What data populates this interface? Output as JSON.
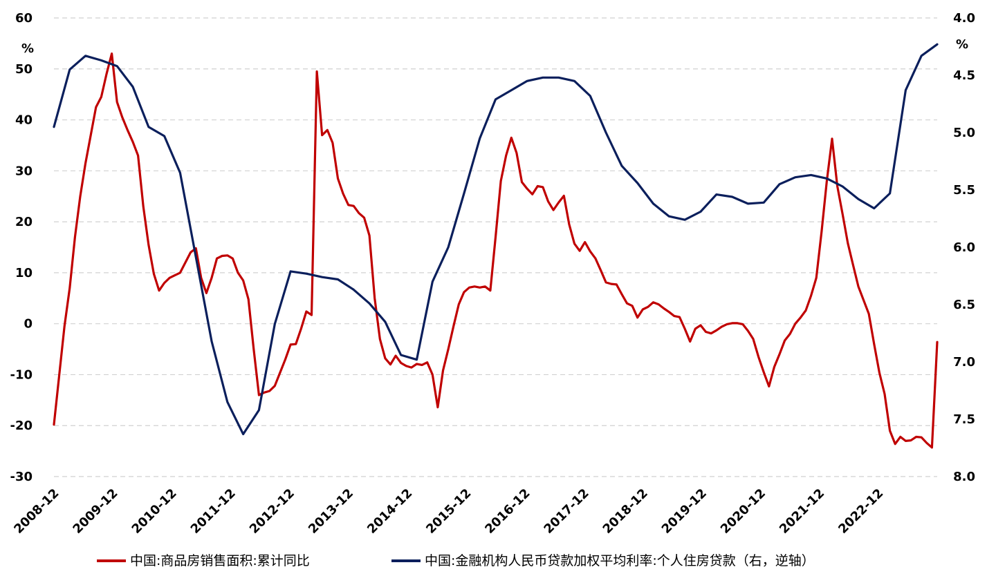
{
  "chart_data": {
    "type": "line",
    "categories": [
      "2008-12",
      "2009-12",
      "2010-12",
      "2011-12",
      "2012-12",
      "2013-12",
      "2014-12",
      "2015-12",
      "2016-12",
      "2017-12",
      "2018-12",
      "2019-12",
      "2020-12",
      "2021-12",
      "2022-12"
    ],
    "y_left": {
      "unit": "%",
      "ylim": [
        -30,
        60
      ],
      "ticks": [
        60,
        50,
        40,
        30,
        20,
        10,
        0,
        -10,
        -20,
        -30
      ]
    },
    "y_right": {
      "unit": "%",
      "ylim": [
        4.0,
        8.0
      ],
      "inverted": true,
      "ticks": [
        "4.0",
        "4.5",
        "5.0",
        "5.5",
        "6.0",
        "6.5",
        "7.0",
        "7.5",
        "8.0"
      ]
    },
    "grid": "horizontal dashed",
    "legend_position": "bottom",
    "series": [
      {
        "name": "中国:商品房销售面积:累计同比",
        "color": "#c00000",
        "axis": "left",
        "points": [
          [
            0,
            -19.8
          ],
          [
            2,
            -0.5
          ],
          [
            3,
            7
          ],
          [
            4,
            17
          ],
          [
            5,
            25
          ],
          [
            6,
            31.5
          ],
          [
            7,
            37
          ],
          [
            8,
            42.5
          ],
          [
            9,
            44.5
          ],
          [
            10,
            49
          ],
          [
            11,
            53
          ],
          [
            12,
            43.5
          ],
          [
            13,
            40.5
          ],
          [
            14,
            38
          ],
          [
            15,
            35.7
          ],
          [
            16,
            33
          ],
          [
            17,
            23
          ],
          [
            18,
            15.5
          ],
          [
            19,
            9.8
          ],
          [
            20,
            6.5
          ],
          [
            21,
            8
          ],
          [
            22,
            9
          ],
          [
            23,
            9.5
          ],
          [
            24,
            10
          ],
          [
            25,
            12
          ],
          [
            26,
            14
          ],
          [
            27,
            14.8
          ],
          [
            28,
            9
          ],
          [
            29,
            6
          ],
          [
            30,
            9
          ],
          [
            31,
            12.8
          ],
          [
            32,
            13.3
          ],
          [
            33,
            13.4
          ],
          [
            34,
            12.8
          ],
          [
            35,
            10
          ],
          [
            36,
            8.5
          ],
          [
            37,
            4.8
          ],
          [
            38,
            -5
          ],
          [
            39,
            -14
          ],
          [
            40,
            -13.5
          ],
          [
            41,
            -13.2
          ],
          [
            42,
            -12.2
          ],
          [
            43,
            -9.6
          ],
          [
            44,
            -7
          ],
          [
            45,
            -4.1
          ],
          [
            46,
            -4
          ],
          [
            47,
            -1
          ],
          [
            48,
            2.4
          ],
          [
            49,
            1.7
          ],
          [
            50,
            49.5
          ],
          [
            51,
            37
          ],
          [
            52,
            38
          ],
          [
            53,
            35.5
          ],
          [
            54,
            28.5
          ],
          [
            55,
            25.5
          ],
          [
            56,
            23.3
          ],
          [
            57,
            23.1
          ],
          [
            58,
            21.7
          ],
          [
            59,
            20.8
          ],
          [
            60,
            17.3
          ],
          [
            61,
            5
          ],
          [
            62,
            -3
          ],
          [
            63,
            -6.8
          ],
          [
            64,
            -8
          ],
          [
            65,
            -6.3
          ],
          [
            66,
            -7.7
          ],
          [
            67,
            -8.3
          ],
          [
            68,
            -8.6
          ],
          [
            69,
            -7.9
          ],
          [
            70,
            -8.1
          ],
          [
            71,
            -7.6
          ],
          [
            72,
            -10
          ],
          [
            73,
            -16.4
          ],
          [
            74,
            -9.2
          ],
          [
            75,
            -5
          ],
          [
            76,
            -0.5
          ],
          [
            77,
            3.8
          ],
          [
            78,
            6.2
          ],
          [
            79,
            7.1
          ],
          [
            80,
            7.3
          ],
          [
            81,
            7.1
          ],
          [
            82,
            7.3
          ],
          [
            83,
            6.5
          ],
          [
            84,
            17
          ],
          [
            85,
            28
          ],
          [
            86,
            33
          ],
          [
            87,
            36.5
          ],
          [
            88,
            33.5
          ],
          [
            89,
            27.8
          ],
          [
            90,
            26.5
          ],
          [
            91,
            25.4
          ],
          [
            92,
            27
          ],
          [
            93,
            26.8
          ],
          [
            94,
            24
          ],
          [
            95,
            22.3
          ],
          [
            96,
            23.8
          ],
          [
            97,
            25.1
          ],
          [
            98,
            19.5
          ],
          [
            99,
            15.7
          ],
          [
            100,
            14.3
          ],
          [
            101,
            16
          ],
          [
            102,
            14.2
          ],
          [
            103,
            12.8
          ],
          [
            104,
            10.5
          ],
          [
            105,
            8.1
          ],
          [
            106,
            7.8
          ],
          [
            107,
            7.7
          ],
          [
            108,
            5.8
          ],
          [
            109,
            4
          ],
          [
            110,
            3.5
          ],
          [
            111,
            1.2
          ],
          [
            112,
            2.8
          ],
          [
            113,
            3.3
          ],
          [
            114,
            4.2
          ],
          [
            115,
            3.8
          ],
          [
            116,
            3
          ],
          [
            117,
            2.3
          ],
          [
            118,
            1.5
          ],
          [
            119,
            1.3
          ],
          [
            120,
            -1
          ],
          [
            121,
            -3.5
          ],
          [
            122,
            -1
          ],
          [
            123,
            -0.3
          ],
          [
            124,
            -1.6
          ],
          [
            125,
            -1.9
          ],
          [
            126,
            -1.3
          ],
          [
            127,
            -0.6
          ],
          [
            128,
            -0.1
          ],
          [
            129,
            0.1
          ],
          [
            130,
            0.1
          ],
          [
            131,
            -0.1
          ],
          [
            132,
            -1.4
          ],
          [
            133,
            -3
          ],
          [
            134,
            -6.5
          ],
          [
            135,
            -9.5
          ],
          [
            136,
            -12.3
          ],
          [
            137,
            -8.5
          ],
          [
            138,
            -6
          ],
          [
            139,
            -3.3
          ],
          [
            140,
            -2
          ],
          [
            141,
            0
          ],
          [
            142,
            1.2
          ],
          [
            143,
            2.6
          ],
          [
            144,
            5.5
          ],
          [
            145,
            9
          ],
          [
            146,
            18
          ],
          [
            147,
            28
          ],
          [
            148,
            36.3
          ],
          [
            149,
            27
          ],
          [
            150,
            21.5
          ],
          [
            151,
            15.8
          ],
          [
            152,
            11.5
          ],
          [
            153,
            7.3
          ],
          [
            154,
            4.6
          ],
          [
            155,
            1.9
          ],
          [
            156,
            -4
          ],
          [
            157,
            -9.6
          ],
          [
            158,
            -13.8
          ],
          [
            159,
            -21
          ],
          [
            160,
            -23.6
          ],
          [
            161,
            -22.2
          ],
          [
            162,
            -23
          ],
          [
            163,
            -22.9
          ],
          [
            164,
            -22.2
          ],
          [
            165,
            -22.3
          ],
          [
            166,
            -23.4
          ],
          [
            167,
            -24.3
          ],
          [
            168,
            -3.6
          ]
        ]
      },
      {
        "name": "中国:金融机构人民币贷款加权平均利率:个人住房贷款（右，逆轴）",
        "color": "#0b1f5c",
        "axis": "right",
        "points": [
          [
            0,
            4.95
          ],
          [
            3,
            4.45
          ],
          [
            6,
            4.33
          ],
          [
            9,
            4.37
          ],
          [
            12,
            4.42
          ],
          [
            15,
            4.6
          ],
          [
            18,
            4.95
          ],
          [
            21,
            5.03
          ],
          [
            24,
            5.35
          ],
          [
            30,
            6.82
          ],
          [
            33,
            7.35
          ],
          [
            36,
            7.63
          ],
          [
            39,
            7.42
          ],
          [
            42,
            6.67
          ],
          [
            45,
            6.21
          ],
          [
            48,
            6.23
          ],
          [
            51,
            6.26
          ],
          [
            54,
            6.28
          ],
          [
            57,
            6.37
          ],
          [
            60,
            6.49
          ],
          [
            63,
            6.65
          ],
          [
            66,
            6.94
          ],
          [
            69,
            6.98
          ],
          [
            72,
            6.3
          ],
          [
            75,
            6.0
          ],
          [
            78,
            5.53
          ],
          [
            81,
            5.05
          ],
          [
            84,
            4.71
          ],
          [
            87,
            4.63
          ],
          [
            90,
            4.55
          ],
          [
            93,
            4.52
          ],
          [
            96,
            4.52
          ],
          [
            99,
            4.55
          ],
          [
            102,
            4.68
          ],
          [
            105,
            5.0
          ],
          [
            108,
            5.29
          ],
          [
            111,
            5.44
          ],
          [
            114,
            5.62
          ],
          [
            117,
            5.73
          ],
          [
            120,
            5.76
          ],
          [
            123,
            5.69
          ],
          [
            126,
            5.54
          ],
          [
            129,
            5.56
          ],
          [
            132,
            5.62
          ],
          [
            135,
            5.61
          ],
          [
            138,
            5.45
          ],
          [
            141,
            5.39
          ],
          [
            144,
            5.37
          ],
          [
            147,
            5.4
          ],
          [
            150,
            5.47
          ],
          [
            153,
            5.58
          ],
          [
            156,
            5.66
          ],
          [
            159,
            5.53
          ],
          [
            162,
            4.63
          ],
          [
            165,
            4.33
          ],
          [
            168,
            4.23
          ]
        ]
      }
    ],
    "x_index_range": [
      0,
      168
    ]
  }
}
